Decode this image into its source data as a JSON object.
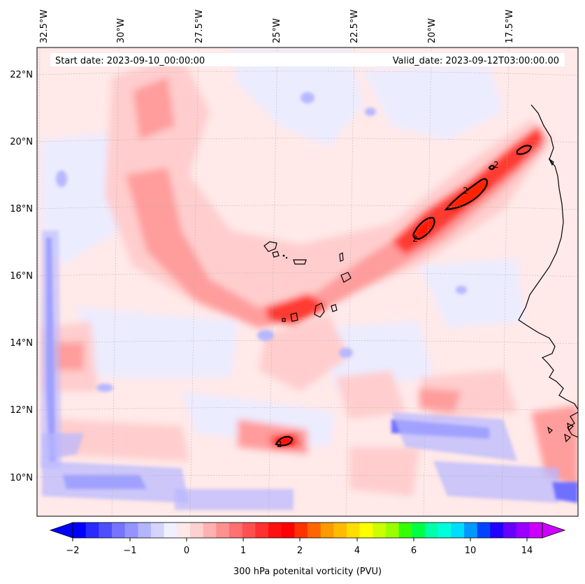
{
  "header": {
    "start_date": "Start date: 2023-09-10_00:00:00",
    "valid_date": "Valid_date: 2023-09-12T03:00:00.00"
  },
  "map": {
    "lon_labels": [
      "32.5°W",
      "30°W",
      "27.5°W",
      "25°W",
      "22.5°W",
      "20°W",
      "17.5°W"
    ],
    "lat_labels": [
      "22°N",
      "20°N",
      "18°N",
      "16°N",
      "14°N",
      "12°N",
      "10°N"
    ],
    "contour_label": "2",
    "background_color": "#ffe9e9",
    "feature_colors": {
      "strong": "#ff2a20",
      "moderate": "#ff7a7a",
      "weak": "#ffb8b8",
      "negative": "#c8c8ff",
      "strong_negative": "#5a5aff"
    }
  },
  "colorbar": {
    "tick_labels": [
      "−2",
      "−1",
      "0",
      "1",
      "2",
      "4",
      "6",
      "10",
      "14"
    ],
    "label": "300 hPa potenital vorticity (PVU)",
    "colors": [
      "#0000ff",
      "#2a2aff",
      "#4f4fff",
      "#7474ff",
      "#9494ff",
      "#b4b4ff",
      "#d4d4ff",
      "#f0f0ff",
      "#ffe8e8",
      "#ffd0d0",
      "#ffb0b0",
      "#ff9090",
      "#ff7070",
      "#ff5050",
      "#ff3030",
      "#ff1010",
      "#ff0000",
      "#ff3300",
      "#ff6600",
      "#ff9900",
      "#ffbb00",
      "#ffdd00",
      "#ffff00",
      "#ccff00",
      "#99ff00",
      "#33ff00",
      "#00ff44",
      "#00ffaa",
      "#00ffdd",
      "#00ddff",
      "#0099ff",
      "#0044ff",
      "#2200ff",
      "#6600ff",
      "#9900ff",
      "#cc00ff"
    ]
  }
}
